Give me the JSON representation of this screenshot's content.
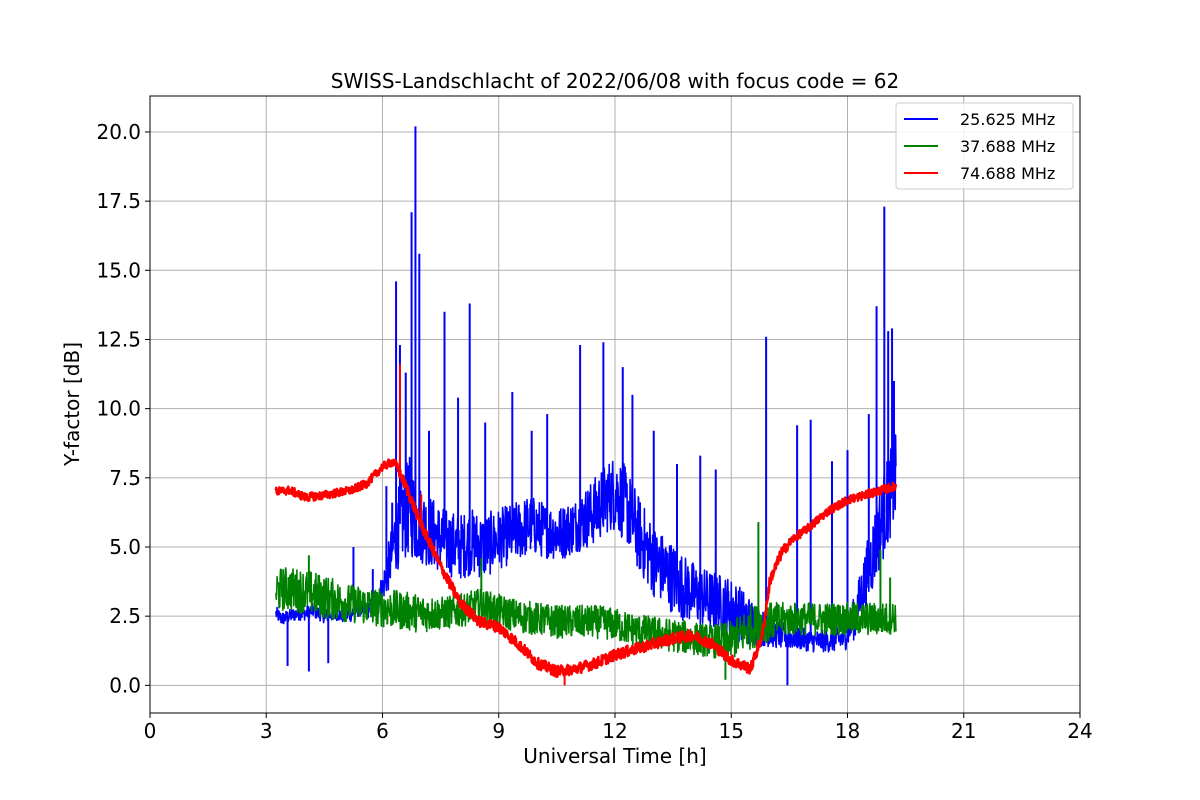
{
  "chart_data": {
    "type": "line",
    "title": "SWISS-Landschlacht of 2022/06/08 with focus code = 62",
    "xlabel": "Universal Time [h]",
    "ylabel": "Y-factor [dB]",
    "xlim": [
      0,
      24
    ],
    "ylim": [
      -1.0,
      21.3
    ],
    "xticks": [
      0,
      3,
      6,
      9,
      12,
      15,
      18,
      21,
      24
    ],
    "xtick_labels": [
      "0",
      "3",
      "6",
      "9",
      "12",
      "15",
      "18",
      "21",
      "24"
    ],
    "yticks": [
      0.0,
      2.5,
      5.0,
      7.5,
      10.0,
      12.5,
      15.0,
      17.5,
      20.0
    ],
    "ytick_labels": [
      "0.0",
      "2.5",
      "5.0",
      "7.5",
      "10.0",
      "12.5",
      "15.0",
      "17.5",
      "20.0"
    ],
    "grid": true,
    "legend_position": "top-right",
    "series": [
      {
        "name": "25.625 MHz",
        "color": "#0000ff",
        "x": [
          3.25,
          3.4,
          3.6,
          3.8,
          4.0,
          4.2,
          4.5,
          4.8,
          5.0,
          5.2,
          5.4,
          5.6,
          5.8,
          6.0,
          6.2,
          6.35,
          6.5,
          6.7,
          6.85,
          7.0,
          7.3,
          7.6,
          8.0,
          8.3,
          8.6,
          9.0,
          9.4,
          9.8,
          10.2,
          10.6,
          11.0,
          11.4,
          11.8,
          12.0,
          12.3,
          12.6,
          13.0,
          13.4,
          13.8,
          14.2,
          14.6,
          15.0,
          15.3,
          15.6,
          15.9,
          16.3,
          16.7,
          17.1,
          17.5,
          17.9,
          18.2,
          18.5,
          18.8,
          19.0,
          19.25
        ],
        "y": [
          2.6,
          2.4,
          2.5,
          2.6,
          2.6,
          2.7,
          2.5,
          2.6,
          2.5,
          2.6,
          2.8,
          2.7,
          3.0,
          3.5,
          4.5,
          5.5,
          6.0,
          6.5,
          6.0,
          5.8,
          5.5,
          5.2,
          5.0,
          5.2,
          5.0,
          5.3,
          5.5,
          5.8,
          5.6,
          5.5,
          5.8,
          6.2,
          6.8,
          7.0,
          6.5,
          5.5,
          4.5,
          4.0,
          3.5,
          3.2,
          3.0,
          2.8,
          2.5,
          2.2,
          2.0,
          1.8,
          1.7,
          1.6,
          1.6,
          1.7,
          2.5,
          4.0,
          5.5,
          6.5,
          7.5
        ],
        "noise": [
          0.25,
          0.25,
          0.25,
          0.25,
          0.25,
          0.25,
          0.25,
          0.25,
          0.25,
          0.3,
          0.3,
          0.3,
          0.35,
          0.5,
          1.0,
          1.4,
          1.6,
          1.8,
          1.6,
          1.4,
          1.3,
          1.2,
          1.2,
          1.2,
          1.2,
          1.1,
          1.1,
          1.1,
          1.0,
          1.0,
          1.0,
          1.2,
          1.3,
          1.4,
          1.4,
          1.4,
          1.3,
          1.3,
          1.2,
          1.1,
          1.1,
          1.1,
          1.0,
          0.8,
          0.6,
          0.5,
          0.4,
          0.4,
          0.4,
          0.5,
          0.8,
          1.2,
          1.5,
          1.6,
          1.6
        ],
        "spikes": [
          [
            3.55,
            0.7
          ],
          [
            4.1,
            0.5
          ],
          [
            4.6,
            0.8
          ],
          [
            5.25,
            5.0
          ],
          [
            5.75,
            4.2
          ],
          [
            6.1,
            7.2
          ],
          [
            6.25,
            6.6
          ],
          [
            6.35,
            14.6
          ],
          [
            6.45,
            12.3
          ],
          [
            6.6,
            11.3
          ],
          [
            6.75,
            17.1
          ],
          [
            6.85,
            20.2
          ],
          [
            6.95,
            15.6
          ],
          [
            7.2,
            9.2
          ],
          [
            7.6,
            13.5
          ],
          [
            7.95,
            10.4
          ],
          [
            8.25,
            13.8
          ],
          [
            8.65,
            9.5
          ],
          [
            9.35,
            10.6
          ],
          [
            9.85,
            9.2
          ],
          [
            10.25,
            9.8
          ],
          [
            11.1,
            12.3
          ],
          [
            11.7,
            12.4
          ],
          [
            12.2,
            11.5
          ],
          [
            12.45,
            10.5
          ],
          [
            13.0,
            9.2
          ],
          [
            13.6,
            8.0
          ],
          [
            14.2,
            8.3
          ],
          [
            14.6,
            7.8
          ],
          [
            15.9,
            12.6
          ],
          [
            16.45,
            0.0
          ],
          [
            16.7,
            9.4
          ],
          [
            17.05,
            9.6
          ],
          [
            17.6,
            8.1
          ],
          [
            18.0,
            8.5
          ],
          [
            18.55,
            9.8
          ],
          [
            18.75,
            13.7
          ],
          [
            18.95,
            17.3
          ],
          [
            19.05,
            12.8
          ],
          [
            19.15,
            12.9
          ],
          [
            19.2,
            11.0
          ]
        ]
      },
      {
        "name": "37.688 MHz",
        "color": "#008000",
        "x": [
          3.25,
          3.5,
          4.0,
          4.5,
          5.0,
          5.5,
          6.0,
          6.5,
          7.0,
          7.5,
          8.0,
          8.5,
          9.0,
          9.5,
          10.0,
          10.5,
          11.0,
          11.5,
          12.0,
          12.5,
          13.0,
          13.5,
          14.0,
          14.5,
          15.0,
          15.5,
          16.0,
          16.5,
          17.0,
          17.5,
          18.0,
          18.5,
          19.0,
          19.25
        ],
        "y": [
          3.4,
          3.5,
          3.4,
          3.2,
          3.0,
          2.9,
          2.8,
          2.7,
          2.6,
          2.6,
          2.7,
          2.9,
          2.7,
          2.5,
          2.4,
          2.3,
          2.3,
          2.3,
          2.2,
          2.0,
          1.9,
          1.8,
          1.7,
          1.6,
          1.6,
          2.1,
          2.3,
          2.4,
          2.4,
          2.4,
          2.4,
          2.4,
          2.4,
          2.5
        ],
        "noise": [
          0.8,
          0.8,
          0.8,
          0.8,
          0.7,
          0.7,
          0.7,
          0.7,
          0.7,
          0.6,
          0.6,
          0.6,
          0.6,
          0.6,
          0.6,
          0.6,
          0.6,
          0.6,
          0.6,
          0.6,
          0.6,
          0.6,
          0.6,
          0.6,
          0.7,
          0.8,
          0.7,
          0.6,
          0.6,
          0.6,
          0.6,
          0.6,
          0.6,
          0.6
        ],
        "spikes": [
          [
            4.1,
            4.7
          ],
          [
            8.55,
            4.6
          ],
          [
            14.85,
            0.2
          ],
          [
            15.7,
            5.9
          ],
          [
            18.85,
            4.9
          ],
          [
            19.1,
            3.9
          ]
        ]
      },
      {
        "name": "74.688 MHz",
        "color": "#ff0000",
        "x": [
          3.25,
          3.6,
          4.0,
          4.4,
          4.8,
          5.2,
          5.6,
          6.0,
          6.3,
          6.6,
          7.0,
          7.5,
          8.0,
          8.5,
          9.0,
          9.5,
          10.0,
          10.5,
          11.0,
          11.5,
          12.0,
          12.5,
          13.0,
          13.5,
          14.0,
          14.5,
          15.0,
          15.5,
          15.8,
          16.0,
          16.3,
          16.6,
          17.0,
          17.5,
          18.0,
          18.5,
          19.0,
          19.25
        ],
        "y": [
          7.0,
          7.05,
          6.8,
          6.85,
          6.95,
          7.05,
          7.3,
          7.9,
          8.1,
          7.2,
          5.8,
          4.3,
          3.0,
          2.3,
          2.1,
          1.5,
          0.8,
          0.5,
          0.6,
          0.8,
          1.1,
          1.3,
          1.5,
          1.7,
          1.8,
          1.5,
          0.9,
          0.6,
          1.8,
          3.8,
          4.8,
          5.3,
          5.7,
          6.3,
          6.7,
          6.9,
          7.1,
          7.2
        ],
        "noise": [
          0.15,
          0.15,
          0.15,
          0.15,
          0.15,
          0.15,
          0.15,
          0.15,
          0.15,
          0.2,
          0.2,
          0.2,
          0.2,
          0.2,
          0.2,
          0.2,
          0.2,
          0.2,
          0.2,
          0.2,
          0.2,
          0.2,
          0.2,
          0.2,
          0.2,
          0.2,
          0.2,
          0.2,
          0.2,
          0.2,
          0.2,
          0.15,
          0.15,
          0.15,
          0.15,
          0.15,
          0.15,
          0.15
        ],
        "spikes": [
          [
            6.45,
            11.6
          ],
          [
            7.0,
            6.9
          ],
          [
            10.7,
            0.0
          ],
          [
            15.45,
            0.5
          ]
        ]
      }
    ]
  }
}
